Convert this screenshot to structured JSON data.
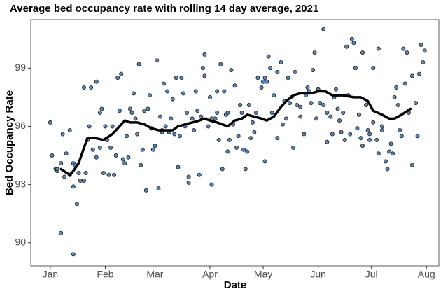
{
  "chart_data": {
    "type": "scatter",
    "title": "Average bed occupancy rate with rolling 14 day average, 2021",
    "x_label": "Date",
    "y_label": "Bed Occupancy Rate",
    "xlim": [
      -10,
      220
    ],
    "xticks": [
      {
        "value": 1,
        "label": "Jan"
      },
      {
        "value": 32,
        "label": "Feb"
      },
      {
        "value": 60,
        "label": "Mar"
      },
      {
        "value": 91,
        "label": "Apr"
      },
      {
        "value": 121,
        "label": "May"
      },
      {
        "value": 152,
        "label": "Jun"
      },
      {
        "value": 182,
        "label": "Jul"
      },
      {
        "value": 213,
        "label": "Aug"
      }
    ],
    "ylim": [
      88.8,
      101.5
    ],
    "yticks": [
      90,
      93,
      96,
      99
    ],
    "grid": false,
    "color": "#5b86b8",
    "x": [
      1,
      2,
      4,
      5,
      5,
      7,
      7,
      8,
      9,
      10,
      12,
      12,
      14,
      14,
      14,
      15,
      16,
      17,
      18,
      20,
      20,
      21,
      22,
      23,
      24,
      25,
      27,
      27,
      29,
      29,
      30,
      31,
      32,
      33,
      34,
      35,
      36,
      37,
      38,
      39,
      40,
      41,
      42,
      43,
      44,
      45,
      46,
      47,
      48,
      49,
      50,
      51,
      52,
      53,
      54,
      55,
      56,
      57,
      58,
      59,
      60,
      61,
      62,
      63,
      64,
      64,
      65,
      66,
      67,
      68,
      69,
      70,
      71,
      72,
      73,
      74,
      75,
      76,
      77,
      78,
      79,
      79,
      81,
      82,
      83,
      84,
      85,
      86,
      87,
      88,
      88,
      90,
      91,
      92,
      92,
      94,
      95,
      95,
      96,
      97,
      98,
      99,
      100,
      101,
      101,
      102,
      103,
      104,
      105,
      106,
      107,
      108,
      109,
      110,
      111,
      112,
      113,
      114,
      115,
      116,
      117,
      118,
      120,
      121,
      122,
      122,
      123,
      124,
      125,
      126,
      127,
      129,
      129,
      131,
      132,
      133,
      134,
      135,
      136,
      137,
      138,
      139,
      140,
      142,
      142,
      144,
      145,
      146,
      147,
      148,
      149,
      150,
      151,
      152,
      153,
      155,
      155,
      157,
      157,
      159,
      160,
      161,
      162,
      163,
      164,
      165,
      166,
      167,
      168,
      169,
      170,
      171,
      172,
      173,
      174,
      175,
      176,
      177,
      177,
      179,
      180,
      181,
      181,
      183,
      183,
      185,
      186,
      186,
      188,
      188,
      190,
      191,
      192,
      193,
      194,
      195,
      196,
      197,
      198,
      199,
      200,
      201,
      202,
      203,
      205,
      205,
      207,
      208,
      209,
      210,
      211,
      212
    ],
    "values": [
      96.2,
      94.5,
      93.8,
      93.7,
      93.8,
      94.1,
      90.5,
      95.6,
      93.4,
      94.6,
      93.5,
      95.8,
      89.4,
      92.9,
      94.1,
      94.0,
      92.0,
      93.6,
      93.2,
      98.0,
      93.2,
      93.6,
      95.3,
      96.0,
      98.0,
      94.8,
      98.3,
      94.4,
      94.9,
      96.7,
      96.9,
      93.6,
      96.0,
      95.3,
      93.5,
      94.9,
      96.0,
      93.5,
      94.5,
      98.5,
      96.8,
      98.7,
      94.3,
      94.1,
      95.5,
      94.4,
      96.9,
      96.7,
      97.7,
      96.4,
      95.6,
      99.2,
      94.0,
      94.8,
      96.8,
      92.7,
      96.9,
      97.6,
      95.9,
      94.8,
      95.0,
      99.4,
      92.8,
      96.5,
      95.7,
      95.8,
      98.2,
      96.0,
      97.8,
      95.7,
      96.4,
      97.4,
      95.6,
      98.5,
      93.9,
      95.5,
      98.5,
      97.7,
      96.0,
      96.7,
      93.4,
      93.1,
      96.4,
      95.8,
      97.8,
      96.8,
      93.5,
      96.5,
      99.0,
      99.7,
      98.6,
      96.0,
      97.5,
      93.0,
      96.4,
      96.4,
      96.7,
      97.8,
      95.3,
      99.2,
      93.8,
      97.8,
      96.6,
      94.7,
      96.7,
      95.3,
      98.9,
      96.1,
      98.1,
      94.9,
      95.5,
      97.1,
      96.7,
      94.8,
      93.8,
      94.7,
      97.1,
      95.4,
      96.2,
      95.7,
      96.7,
      98.5,
      98.0,
      98.3,
      94.2,
      98.5,
      98.3,
      99.6,
      99.0,
      96.7,
      97.6,
      95.4,
      98.8,
      99.3,
      96.1,
      97.3,
      96.4,
      98.5,
      97.2,
      97.5,
      94.9,
      98.8,
      97.1,
      97.0,
      96.5,
      95.6,
      97.6,
      98.0,
      97.8,
      97.2,
      98.9,
      99.8,
      96.4,
      97.9,
      97.2,
      101.0,
      97.1,
      96.7,
      95.2,
      96.5,
      95.6,
      97.5,
      97.9,
      96.9,
      96.3,
      95.7,
      96.7,
      95.3,
      100.1,
      97.6,
      95.6,
      100.5,
      100.3,
      99.0,
      95.9,
      96.6,
      95.4,
      99.8,
      95.0,
      97.1,
      95.8,
      95.6,
      95.3,
      96.2,
      99.0,
      95.3,
      94.6,
      100.0,
      96.0,
      95.8,
      94.2,
      93.8,
      94.7,
      95.1,
      94.6,
      97.5,
      98.0,
      97.1,
      95.8,
      95.5,
      100.0,
      98.2,
      99.8,
      96.7,
      98.6,
      94.0,
      97.2,
      95.5,
      98.7,
      100.2,
      99.3,
      99.9
    ],
    "line": {
      "color": "#000000",
      "x": [
        7,
        12,
        14,
        17,
        20,
        22,
        26,
        31,
        36,
        40,
        43,
        46,
        50,
        54,
        58,
        62,
        66,
        70,
        73,
        77,
        81,
        85,
        88,
        91,
        95,
        98,
        101,
        105,
        109,
        112,
        116,
        120,
        123,
        127,
        131,
        134,
        138,
        142,
        148,
        152,
        156,
        160,
        166,
        172,
        176,
        180,
        183,
        188,
        192,
        195,
        199,
        204
      ],
      "values": [
        93.8,
        93.5,
        93.7,
        94.1,
        94.9,
        95.4,
        95.4,
        95.3,
        95.6,
        96.0,
        96.3,
        96.2,
        96.2,
        96.1,
        95.9,
        95.8,
        95.8,
        95.8,
        96.0,
        96.1,
        96.2,
        96.3,
        96.4,
        96.3,
        96.2,
        96.1,
        96.0,
        96.3,
        96.4,
        96.6,
        96.5,
        96.4,
        96.3,
        96.5,
        97.0,
        97.3,
        97.6,
        97.7,
        97.7,
        97.8,
        97.8,
        97.6,
        97.6,
        97.5,
        97.5,
        97.3,
        96.8,
        96.6,
        96.4,
        96.4,
        96.6,
        96.9
      ]
    }
  }
}
